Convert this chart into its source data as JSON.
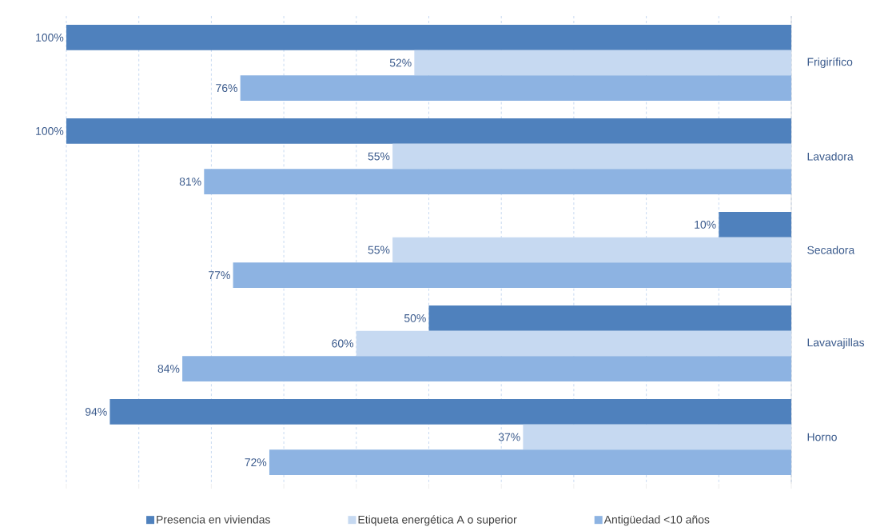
{
  "chart_data": {
    "type": "bar",
    "orientation": "horizontal",
    "categories": [
      "Frigirífico",
      "Lavadora",
      "Secadora",
      "Lavavajillas",
      "Horno"
    ],
    "series": [
      {
        "name": "Presencia en viviendas",
        "color": "#4f81bd",
        "values": [
          100,
          100,
          10,
          50,
          94
        ],
        "value_labels": [
          "100%",
          "100%",
          "10%",
          "50%",
          "94%"
        ]
      },
      {
        "name": "Etiqueta energética A o superior",
        "color": "#c6d9f1",
        "values": [
          52,
          55,
          55,
          60,
          37
        ],
        "value_labels": [
          "52%",
          "55%",
          "55%",
          "60%",
          "37%"
        ]
      },
      {
        "name": "Antigüedad <10 años",
        "color": "#8db3e2",
        "values": [
          76,
          81,
          77,
          84,
          72
        ],
        "value_labels": [
          "76%",
          "81%",
          "77%",
          "84%",
          "72%"
        ]
      }
    ],
    "xlim": [
      100,
      0
    ],
    "xticks": [
      {
        "value": 100,
        "label": null
      },
      {
        "value": 90,
        "label": null
      },
      {
        "value": 80,
        "label": null
      },
      {
        "value": 70,
        "label": null
      },
      {
        "value": 60,
        "label": null
      },
      {
        "value": 50,
        "label": null
      },
      {
        "value": 40,
        "label": null
      },
      {
        "value": 30,
        "label": null
      },
      {
        "value": 20,
        "label": null
      },
      {
        "value": 10,
        "label": null
      },
      {
        "value": 0,
        "label": null
      }
    ],
    "tick_labels": "y",
    "grid": "x",
    "legend": "bottom"
  }
}
